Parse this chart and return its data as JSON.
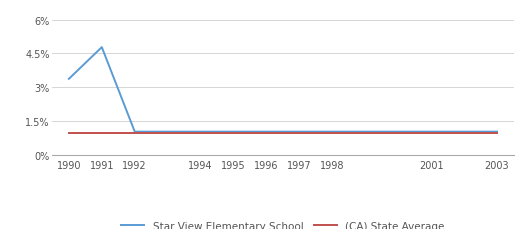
{
  "x_ticks": [
    1990,
    1991,
    1992,
    1994,
    1995,
    1996,
    1997,
    1998,
    2001,
    2003
  ],
  "school_x": [
    1990,
    1991,
    1992,
    1994,
    1995,
    1996,
    1997,
    1998,
    2001,
    2003
  ],
  "school_y": [
    3.38,
    4.78,
    1.05,
    1.05,
    1.05,
    1.05,
    1.05,
    1.05,
    1.05,
    1.05
  ],
  "state_x": [
    1990,
    1991,
    1992,
    1994,
    1995,
    1996,
    1997,
    1998,
    2001,
    2003
  ],
  "state_y": [
    1.0,
    1.0,
    1.0,
    1.0,
    1.0,
    1.0,
    1.0,
    1.0,
    1.0,
    1.0
  ],
  "school_color": "#5b9bd5",
  "state_color": "#c0504d",
  "ylim": [
    0,
    6.5
  ],
  "yticks": [
    0,
    1.5,
    3.0,
    4.5,
    6.0
  ],
  "ytick_labels": [
    "0%",
    "1.5%",
    "3%",
    "4.5%",
    "6%"
  ],
  "school_label": "Star View Elementary School",
  "state_label": "(CA) State Average",
  "bg_color": "#ffffff",
  "grid_color": "#d0d0d0",
  "line_width": 1.4
}
